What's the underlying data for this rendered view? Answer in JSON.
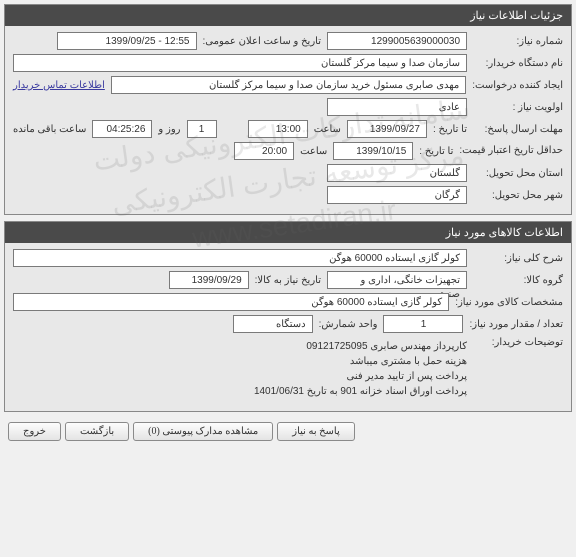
{
  "watermark": {
    "line1": "سامانه تدارکات الکترونیکی دولت",
    "line2": "مرکز توسعه تجارت الکترونیکی",
    "line3": "www.setadiran.ir"
  },
  "panels": {
    "need_info": {
      "title": "جزئیات اطلاعات نیاز"
    },
    "goods_info": {
      "title": "اطلاعات کالاهای مورد نیاز"
    }
  },
  "need": {
    "number_label": "شماره نیاز:",
    "number": "1299005639000030",
    "announce_label": "تاریخ و ساعت اعلان عمومی:",
    "announce": "12:55 - 1399/09/25",
    "buyer_label": "نام دستگاه خریدار:",
    "buyer": "سازمان صدا و سیما مرکز گلستان",
    "requester_label": "ایجاد کننده درخواست:",
    "requester": "مهدی صابری مسئول خرید سازمان صدا و سیما مرکز گلستان",
    "contact_link": "اطلاعات تماس خریدار",
    "priority_label": "اولویت نیاز :",
    "priority": "عادی",
    "deadline_label": "مهلت ارسال پاسخ:",
    "to_date_label": "تا تاریخ :",
    "deadline_date": "1399/09/27",
    "time_label": "ساعت",
    "deadline_time": "13:00",
    "days_remain": "1",
    "day_and": "روز و",
    "time_remain": "04:25:26",
    "remain_suffix": "ساعت باقی مانده",
    "validity_label": "حداقل تاریخ اعتبار قیمت:",
    "validity_to": "تا تاریخ :",
    "validity_date": "1399/10/15",
    "validity_time": "20:00",
    "province_label": "استان محل تحویل:",
    "province": "گلستان",
    "city_label": "شهر محل تحویل:",
    "city": "گرگان"
  },
  "goods": {
    "desc_label": "شرح کلی نیاز:",
    "desc": "کولر گازی ایستاده 60000 هوگن",
    "group_label": "گروه کالا:",
    "group": "تجهیزات خانگی، اداری و صنعتی",
    "need_date_label": "تاریخ نیاز به کالا:",
    "need_date": "1399/09/29",
    "spec_label": "مشخصات کالای مورد نیاز:",
    "spec": "کولر گازی ایستاده 60000 هوگن",
    "qty_label": "تعداد / مقدار مورد نیاز:",
    "qty": "1",
    "unit_label": "واحد شمارش:",
    "unit": "دستگاه",
    "notes_label": "توضیحات خریدار:",
    "notes_l1": "کارپرداز مهندس صابری 09121725095",
    "notes_l2": "هزینه حمل با مشتری میباشد",
    "notes_l3": "پرداخت پس از تایید مدیر فنی",
    "notes_l4": "پرداخت اوراق اسناد خزانه 901 به تاریخ 1401/06/31"
  },
  "buttons": {
    "respond": "پاسخ به نیاز",
    "attachments": "مشاهده مدارک پیوستی (0)",
    "back": "بازگشت",
    "exit": "خروج"
  },
  "colors": {
    "panel_header_bg": "#4a4a4a",
    "panel_header_fg": "#ffffff",
    "panel_bg": "#e8e8e8",
    "field_border": "#7a7a7a",
    "link": "#3a3aa0"
  }
}
